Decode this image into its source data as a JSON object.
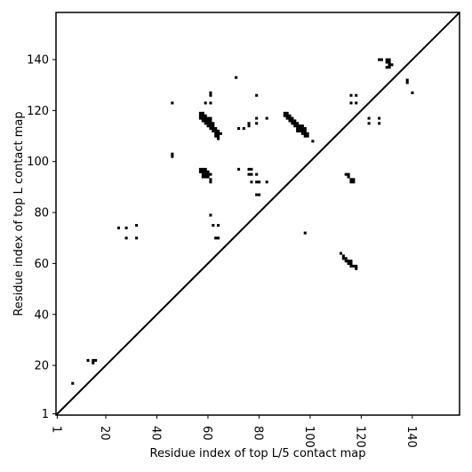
{
  "chart_data": {
    "type": "heatmap",
    "title": "",
    "xlabel": "Residue index of top L/5 contact map",
    "ylabel": "Residue index of top L contact map",
    "xlim": [
      1,
      159
    ],
    "ylim": [
      1,
      159
    ],
    "x_ticks": [
      1,
      20,
      40,
      60,
      80,
      100,
      120,
      140
    ],
    "y_ticks": [
      1,
      20,
      40,
      60,
      80,
      100,
      120,
      140
    ],
    "grid": false,
    "diagonal": true,
    "cell_color": "#000000",
    "background_color": "#ffffff",
    "contacts": [
      [
        46,
        123
      ],
      [
        46,
        102
      ],
      [
        46,
        103
      ],
      [
        57,
        119
      ],
      [
        58,
        119
      ],
      [
        57,
        118
      ],
      [
        58,
        118
      ],
      [
        59,
        118
      ],
      [
        57,
        117
      ],
      [
        58,
        117
      ],
      [
        59,
        117
      ],
      [
        60,
        117
      ],
      [
        61,
        117
      ],
      [
        58,
        116
      ],
      [
        59,
        116
      ],
      [
        60,
        116
      ],
      [
        61,
        116
      ],
      [
        59,
        115
      ],
      [
        60,
        115
      ],
      [
        61,
        115
      ],
      [
        62,
        115
      ],
      [
        60,
        114
      ],
      [
        61,
        114
      ],
      [
        62,
        114
      ],
      [
        61,
        113
      ],
      [
        62,
        113
      ],
      [
        63,
        113
      ],
      [
        62,
        112
      ],
      [
        63,
        112
      ],
      [
        64,
        112
      ],
      [
        63,
        111
      ],
      [
        64,
        111
      ],
      [
        65,
        111
      ],
      [
        63,
        110
      ],
      [
        64,
        110
      ],
      [
        64,
        109
      ],
      [
        59,
        123
      ],
      [
        61,
        123
      ],
      [
        61,
        126
      ],
      [
        61,
        127
      ],
      [
        57,
        97
      ],
      [
        58,
        97
      ],
      [
        59,
        97
      ],
      [
        57,
        96
      ],
      [
        58,
        96
      ],
      [
        59,
        96
      ],
      [
        60,
        96
      ],
      [
        58,
        95
      ],
      [
        59,
        95
      ],
      [
        60,
        95
      ],
      [
        61,
        95
      ],
      [
        58,
        94
      ],
      [
        59,
        94
      ],
      [
        60,
        94
      ],
      [
        61,
        93
      ],
      [
        61,
        92
      ],
      [
        90,
        119
      ],
      [
        91,
        119
      ],
      [
        90,
        118
      ],
      [
        91,
        118
      ],
      [
        92,
        118
      ],
      [
        91,
        117
      ],
      [
        92,
        117
      ],
      [
        93,
        117
      ],
      [
        92,
        116
      ],
      [
        93,
        116
      ],
      [
        94,
        116
      ],
      [
        93,
        115
      ],
      [
        94,
        115
      ],
      [
        95,
        115
      ],
      [
        94,
        114
      ],
      [
        95,
        114
      ],
      [
        96,
        114
      ],
      [
        97,
        114
      ],
      [
        95,
        113
      ],
      [
        96,
        113
      ],
      [
        97,
        113
      ],
      [
        98,
        113
      ],
      [
        96,
        112
      ],
      [
        97,
        112
      ],
      [
        98,
        112
      ],
      [
        97,
        111
      ],
      [
        98,
        111
      ],
      [
        99,
        111
      ],
      [
        95,
        112
      ],
      [
        98,
        110
      ],
      [
        99,
        110
      ],
      [
        79,
        126
      ],
      [
        79,
        117
      ],
      [
        79,
        115
      ],
      [
        83,
        117
      ],
      [
        76,
        115
      ],
      [
        76,
        114
      ],
      [
        72,
        113
      ],
      [
        74,
        113
      ],
      [
        71,
        133
      ],
      [
        101,
        108
      ],
      [
        72,
        97
      ],
      [
        76,
        97
      ],
      [
        77,
        97
      ],
      [
        79,
        95
      ],
      [
        76,
        95
      ],
      [
        77,
        95
      ],
      [
        77,
        92
      ],
      [
        79,
        92
      ],
      [
        80,
        92
      ],
      [
        83,
        92
      ],
      [
        79,
        87
      ],
      [
        80,
        87
      ],
      [
        61,
        79
      ],
      [
        62,
        75
      ],
      [
        64,
        75
      ],
      [
        63,
        70
      ],
      [
        64,
        70
      ],
      [
        25,
        74
      ],
      [
        28,
        74
      ],
      [
        28,
        70
      ],
      [
        32,
        75
      ],
      [
        32,
        70
      ],
      [
        98,
        72
      ],
      [
        112,
        64
      ],
      [
        113,
        63
      ],
      [
        113,
        62
      ],
      [
        114,
        62
      ],
      [
        114,
        61
      ],
      [
        115,
        61
      ],
      [
        116,
        61
      ],
      [
        115,
        60
      ],
      [
        116,
        60
      ],
      [
        116,
        59
      ],
      [
        117,
        59
      ],
      [
        118,
        59
      ],
      [
        118,
        58
      ],
      [
        114,
        95
      ],
      [
        115,
        95
      ],
      [
        115,
        94
      ],
      [
        116,
        93
      ],
      [
        117,
        93
      ],
      [
        116,
        92
      ],
      [
        117,
        92
      ],
      [
        116,
        126
      ],
      [
        118,
        126
      ],
      [
        116,
        123
      ],
      [
        118,
        123
      ],
      [
        123,
        117
      ],
      [
        127,
        117
      ],
      [
        123,
        115
      ],
      [
        127,
        115
      ],
      [
        127,
        140
      ],
      [
        128,
        140
      ],
      [
        130,
        140
      ],
      [
        131,
        140
      ],
      [
        130,
        139
      ],
      [
        131,
        139
      ],
      [
        131,
        138
      ],
      [
        132,
        138
      ],
      [
        130,
        137
      ],
      [
        131,
        137
      ],
      [
        138,
        132
      ],
      [
        138,
        131
      ],
      [
        140,
        127
      ],
      [
        13,
        22
      ],
      [
        15,
        22
      ],
      [
        16,
        22
      ],
      [
        15,
        21
      ],
      [
        7,
        13
      ]
    ]
  }
}
